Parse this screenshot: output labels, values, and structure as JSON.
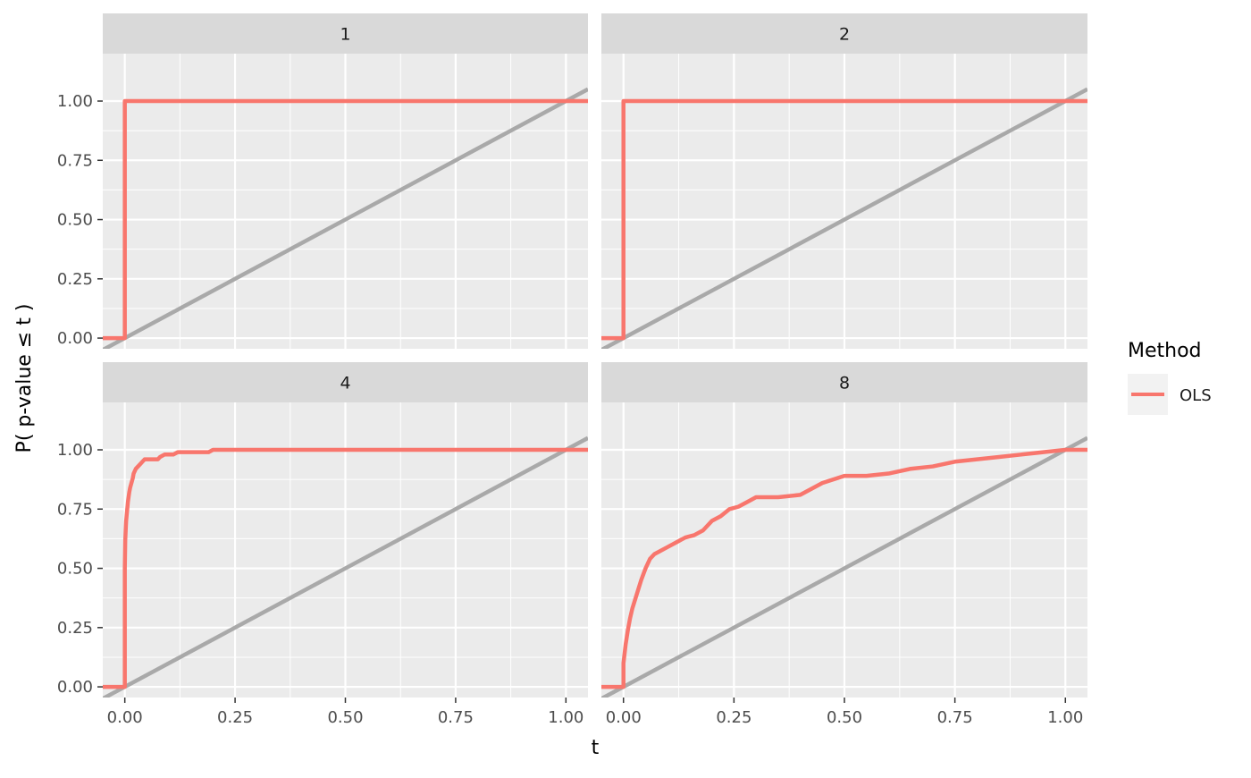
{
  "chart_data": {
    "type": "line",
    "xlabel": "t",
    "ylabel": "P( p-value ≤ t )",
    "xlim": [
      -0.05,
      1.05
    ],
    "ylim": [
      -0.045,
      1.2
    ],
    "x_ticks": [
      0,
      0.25,
      0.5,
      0.75,
      1
    ],
    "x_tick_labels": [
      "0.00",
      "0.25",
      "0.50",
      "0.75",
      "1.00"
    ],
    "y_ticks": [
      0,
      0.25,
      0.5,
      0.75,
      1
    ],
    "y_tick_labels": [
      "0.00",
      "0.25",
      "0.50",
      "0.75",
      "1.00"
    ],
    "grid": true,
    "legend": {
      "title": "Method",
      "position": "right",
      "entries": [
        {
          "label": "OLS",
          "color": "#F8766D"
        }
      ]
    },
    "reference_line": {
      "description": "y = x",
      "color": "#A9A9A9"
    },
    "colors": {
      "panel_bg": "#EBEBEB",
      "strip_bg": "#D9D9D9",
      "grid": "#FFFFFF",
      "series": "#F8766D",
      "reference": "#A9A9A9"
    },
    "panels": [
      {
        "label": "1",
        "series": [
          {
            "name": "OLS",
            "x": [
              -0.05,
              0.0,
              0.0,
              1.05
            ],
            "y": [
              0,
              0,
              1,
              1
            ]
          }
        ]
      },
      {
        "label": "2",
        "series": [
          {
            "name": "OLS",
            "x": [
              -0.05,
              0.0,
              0.0,
              1.05
            ],
            "y": [
              0,
              0,
              1,
              1
            ]
          }
        ]
      },
      {
        "label": "4",
        "series": [
          {
            "name": "OLS",
            "x": [
              -0.05,
              0.0,
              0.0,
              0.001,
              0.002,
              0.003,
              0.005,
              0.007,
              0.01,
              0.012,
              0.015,
              0.018,
              0.02,
              0.025,
              0.03,
              0.035,
              0.04,
              0.045,
              0.05,
              0.06,
              0.075,
              0.08,
              0.09,
              0.1,
              0.11,
              0.12,
              0.15,
              0.19,
              0.2,
              1.05
            ],
            "y": [
              0,
              0,
              0.5,
              0.62,
              0.66,
              0.7,
              0.74,
              0.78,
              0.82,
              0.84,
              0.86,
              0.88,
              0.9,
              0.92,
              0.93,
              0.94,
              0.95,
              0.96,
              0.96,
              0.96,
              0.96,
              0.97,
              0.98,
              0.98,
              0.98,
              0.99,
              0.99,
              0.99,
              1.0,
              1.0
            ]
          }
        ]
      },
      {
        "label": "8",
        "series": [
          {
            "name": "OLS",
            "x": [
              -0.05,
              0.0,
              0.0,
              0.005,
              0.01,
              0.015,
              0.02,
              0.03,
              0.04,
              0.05,
              0.055,
              0.06,
              0.07,
              0.08,
              0.1,
              0.12,
              0.14,
              0.16,
              0.18,
              0.2,
              0.22,
              0.24,
              0.26,
              0.28,
              0.3,
              0.35,
              0.4,
              0.45,
              0.5,
              0.55,
              0.6,
              0.65,
              0.7,
              0.75,
              0.8,
              0.85,
              0.9,
              0.95,
              1.0,
              1.05
            ],
            "y": [
              0,
              0,
              0.1,
              0.18,
              0.24,
              0.29,
              0.33,
              0.39,
              0.45,
              0.5,
              0.52,
              0.54,
              0.56,
              0.57,
              0.59,
              0.61,
              0.63,
              0.64,
              0.66,
              0.7,
              0.72,
              0.75,
              0.76,
              0.78,
              0.8,
              0.8,
              0.81,
              0.86,
              0.89,
              0.89,
              0.9,
              0.92,
              0.93,
              0.95,
              0.96,
              0.97,
              0.98,
              0.99,
              1.0,
              1.0
            ]
          }
        ]
      }
    ]
  }
}
